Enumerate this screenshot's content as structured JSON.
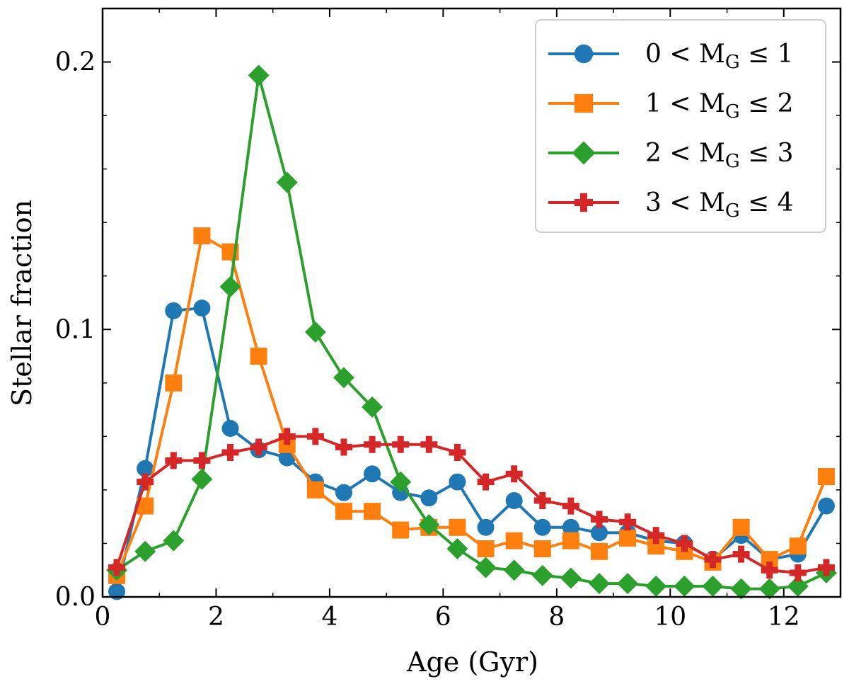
{
  "chart_data": {
    "type": "line",
    "title": "",
    "xlabel": "Age (Gyr)",
    "ylabel": "Stellar fraction",
    "xlim": [
      0,
      13
    ],
    "ylim": [
      0,
      0.22
    ],
    "xticks": [
      0,
      2,
      4,
      6,
      8,
      10,
      12
    ],
    "xtick_labels": [
      "0",
      "2",
      "4",
      "6",
      "8",
      "10",
      "12"
    ],
    "yticks": [
      0.0,
      0.1,
      0.2
    ],
    "ytick_labels": [
      "0.0",
      "0.1",
      "0.2"
    ],
    "grid": false,
    "legend_position": "top-right",
    "x": [
      0.25,
      0.75,
      1.25,
      1.75,
      2.25,
      2.75,
      3.25,
      3.75,
      4.25,
      4.75,
      5.25,
      5.75,
      6.25,
      6.75,
      7.25,
      7.75,
      8.25,
      8.75,
      9.25,
      9.75,
      10.25,
      10.75,
      11.25,
      11.75,
      12.25,
      12.75
    ],
    "series": [
      {
        "name": "0 < M_G ≤ 1",
        "legend_main": "0 < M",
        "legend_sub": "G",
        "legend_tail": " ≤ 1",
        "color": "#1f77b4",
        "marker": "circle",
        "values": [
          0.002,
          0.048,
          0.107,
          0.108,
          0.063,
          0.055,
          0.052,
          0.043,
          0.039,
          0.046,
          0.039,
          0.037,
          0.043,
          0.026,
          0.036,
          0.026,
          0.026,
          0.024,
          0.024,
          0.021,
          0.02,
          0.014,
          0.023,
          0.014,
          0.016,
          0.034
        ]
      },
      {
        "name": "1 < M_G ≤ 2",
        "legend_main": "1 < M",
        "legend_sub": "G",
        "legend_tail": " ≤ 2",
        "color": "#ff7f0e",
        "marker": "square",
        "values": [
          0.008,
          0.034,
          0.08,
          0.135,
          0.129,
          0.09,
          0.057,
          0.04,
          0.032,
          0.032,
          0.025,
          0.026,
          0.026,
          0.018,
          0.021,
          0.018,
          0.021,
          0.017,
          0.022,
          0.019,
          0.017,
          0.013,
          0.026,
          0.014,
          0.019,
          0.045
        ]
      },
      {
        "name": "2 < M_G ≤ 3",
        "legend_main": "2 < M",
        "legend_sub": "G",
        "legend_tail": " ≤ 3",
        "color": "#2ca02c",
        "marker": "diamond",
        "values": [
          0.01,
          0.017,
          0.021,
          0.044,
          0.116,
          0.195,
          0.155,
          0.099,
          0.082,
          0.071,
          0.043,
          0.027,
          0.018,
          0.011,
          0.01,
          0.008,
          0.007,
          0.005,
          0.005,
          0.004,
          0.004,
          0.004,
          0.003,
          0.003,
          0.004,
          0.009
        ]
      },
      {
        "name": "3 < M_G ≤ 4",
        "legend_main": "3 < M",
        "legend_sub": "G",
        "legend_tail": " ≤ 4",
        "color": "#d62728",
        "marker": "plus",
        "values": [
          0.011,
          0.043,
          0.051,
          0.051,
          0.054,
          0.056,
          0.06,
          0.06,
          0.056,
          0.057,
          0.057,
          0.057,
          0.054,
          0.043,
          0.046,
          0.036,
          0.034,
          0.029,
          0.028,
          0.023,
          0.02,
          0.014,
          0.016,
          0.01,
          0.009,
          0.011
        ]
      }
    ]
  }
}
